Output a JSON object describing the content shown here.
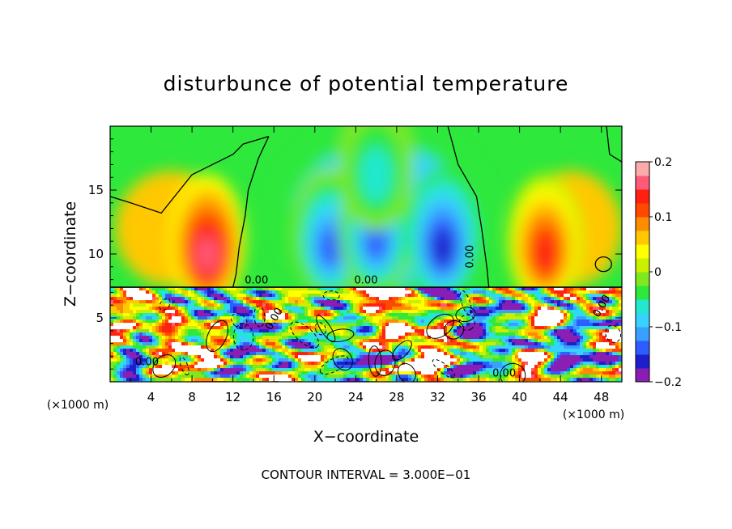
{
  "chart_data": {
    "type": "heatmap",
    "title": "disturbunce of potential temperature",
    "xlabel": "X−coordinate",
    "ylabel": "Z−coordinate",
    "x_unit": "(×1000 m)",
    "x_unit_right": "(×1000 m)",
    "xlim": [
      0,
      50
    ],
    "ylim": [
      0,
      20
    ],
    "x_ticks": [
      4,
      8,
      12,
      16,
      20,
      24,
      28,
      32,
      36,
      40,
      44,
      48
    ],
    "x_tick_labels": [
      "4",
      "8",
      "12",
      "16",
      "20",
      "24",
      "28",
      "32",
      "36",
      "40",
      "44",
      "48"
    ],
    "y_ticks": [
      5,
      10,
      15
    ],
    "y_tick_labels": [
      "5",
      "10",
      "15"
    ],
    "colorbar": {
      "range": [
        -0.2,
        0.2
      ],
      "ticks": [
        0.2,
        0.1,
        0,
        -0.1,
        -0.2
      ],
      "tick_labels": [
        "0.2",
        "0.1",
        "0",
        "−0.1",
        "−0.2"
      ],
      "colors": [
        "#8a1eb4",
        "#1e1ecb",
        "#2e5cff",
        "#3aa0ff",
        "#38d2ff",
        "#22e8d0",
        "#2ee83c",
        "#80e820",
        "#c8f000",
        "#ffff00",
        "#ffc800",
        "#ff8c00",
        "#ff4800",
        "#ff2010",
        "#ff5a7a",
        "#ffaaaa"
      ]
    },
    "contour_label": "0.00",
    "contour_interval_text": "CONTOUR INTERVAL = 3.000E−01",
    "upper_features": [
      {
        "x": 9.5,
        "z": 10.0,
        "value": 0.16
      },
      {
        "x": 42.5,
        "z": 10.0,
        "value": 0.14
      },
      {
        "x": 21.5,
        "z": 10.5,
        "value": -0.15
      },
      {
        "x": 26.0,
        "z": 11.0,
        "value": -0.15
      },
      {
        "x": 32.5,
        "z": 10.5,
        "value": -0.17
      },
      {
        "x": 26.0,
        "z": 16.0,
        "value": -0.07
      }
    ]
  }
}
